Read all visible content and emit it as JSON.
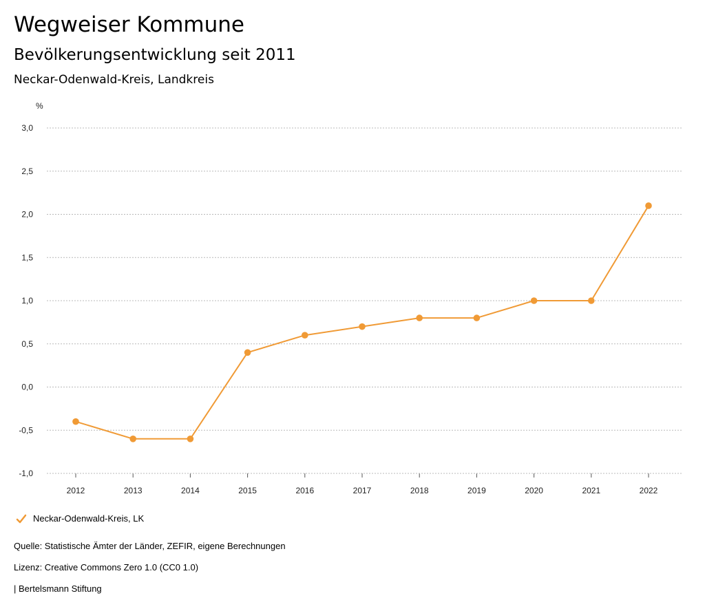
{
  "header": {
    "title": "Wegweiser Kommune",
    "subtitle": "Bevölkerungsentwicklung seit 2011",
    "region": "Neckar-Odenwald-Kreis, Landkreis"
  },
  "chart_data": {
    "type": "line",
    "title": "Wegweiser Kommune",
    "subtitle": "Bevölkerungsentwicklung seit 2011",
    "unit_label": "%",
    "x": [
      "2012",
      "2013",
      "2014",
      "2015",
      "2016",
      "2017",
      "2018",
      "2019",
      "2020",
      "2021",
      "2022"
    ],
    "series": [
      {
        "name": "Neckar-Odenwald-Kreis, LK",
        "values": [
          -0.4,
          -0.6,
          -0.6,
          0.4,
          0.6,
          0.7,
          0.8,
          0.8,
          1.0,
          1.0,
          2.1
        ],
        "color": "#F09A35"
      }
    ],
    "ylim": [
      -1.0,
      3.0
    ],
    "yticks": [
      "-1,0",
      "-0,5",
      "0,0",
      "0,5",
      "1,0",
      "1,5",
      "2,0",
      "2,5",
      "3,0"
    ],
    "grid": true,
    "legend_position": "bottom-left"
  },
  "legend": {
    "label": "Neckar-Odenwald-Kreis, LK",
    "icon": "check-icon"
  },
  "footer": {
    "source": "Quelle: Statistische Ämter der Länder, ZEFIR, eigene Berechnungen",
    "license": "Lizenz: Creative Commons Zero 1.0 (CC0 1.0)",
    "publisher": "| Bertelsmann Stiftung"
  },
  "colors": {
    "series": "#F09A35",
    "grid": "#b8b8b8",
    "text": "#222222"
  }
}
